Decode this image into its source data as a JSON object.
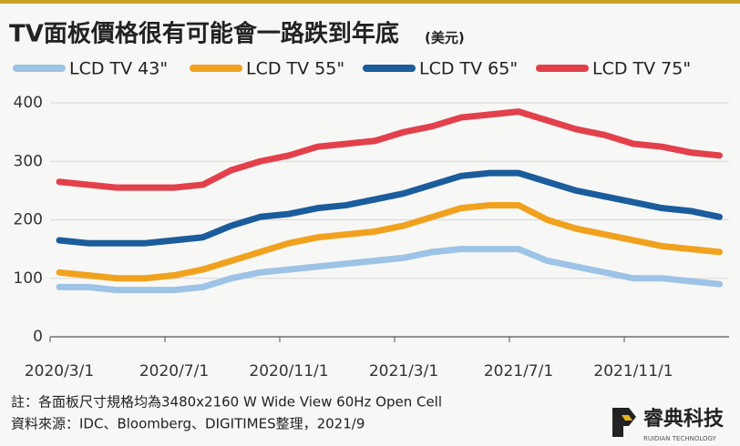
{
  "chart_data": {
    "type": "line",
    "title": "TV面板價格很有可能會一路跌到年底",
    "unit": "(美元)",
    "categories": [
      "2020/3/1",
      null,
      null,
      null,
      "2020/7/1",
      null,
      null,
      null,
      "2020/11/1",
      null,
      null,
      null,
      "2021/3/1",
      null,
      null,
      null,
      "2021/7/1",
      null,
      null,
      null,
      "2021/11/1",
      null,
      null,
      null
    ],
    "series": [
      {
        "name": "LCD TV 43\"",
        "color": "#9dc3e6",
        "values": [
          85,
          85,
          80,
          80,
          80,
          85,
          100,
          110,
          115,
          120,
          125,
          130,
          135,
          145,
          150,
          150,
          150,
          130,
          120,
          110,
          100,
          100,
          95,
          90
        ]
      },
      {
        "name": "LCD TV 55\"",
        "color": "#f0a21e",
        "values": [
          110,
          105,
          100,
          100,
          105,
          115,
          130,
          145,
          160,
          170,
          175,
          180,
          190,
          205,
          220,
          225,
          225,
          200,
          185,
          175,
          165,
          155,
          150,
          145
        ]
      },
      {
        "name": "LCD TV 65\"",
        "color": "#1b5c9c",
        "values": [
          165,
          160,
          160,
          160,
          165,
          170,
          190,
          205,
          210,
          220,
          225,
          235,
          245,
          260,
          275,
          280,
          280,
          265,
          250,
          240,
          230,
          220,
          215,
          205
        ]
      },
      {
        "name": "LCD TV 75\"",
        "color": "#e2404b",
        "values": [
          265,
          260,
          255,
          255,
          255,
          260,
          285,
          300,
          310,
          325,
          330,
          335,
          350,
          360,
          375,
          380,
          385,
          370,
          355,
          345,
          330,
          325,
          315,
          310
        ]
      }
    ],
    "ylim": [
      0,
      400
    ],
    "yticks": [
      0,
      100,
      200,
      300,
      400
    ],
    "grid": true,
    "notes": [
      "註：各面板尺寸規格均為3480x2160 W Wide View 60Hz  Open Cell",
      "資料來源：IDC、Bloomberg、DIGITIMES整理，2021/9"
    ],
    "logo": {
      "name": "睿典科技",
      "subtitle": "RUIDIAN TECHNOLOGY"
    }
  }
}
